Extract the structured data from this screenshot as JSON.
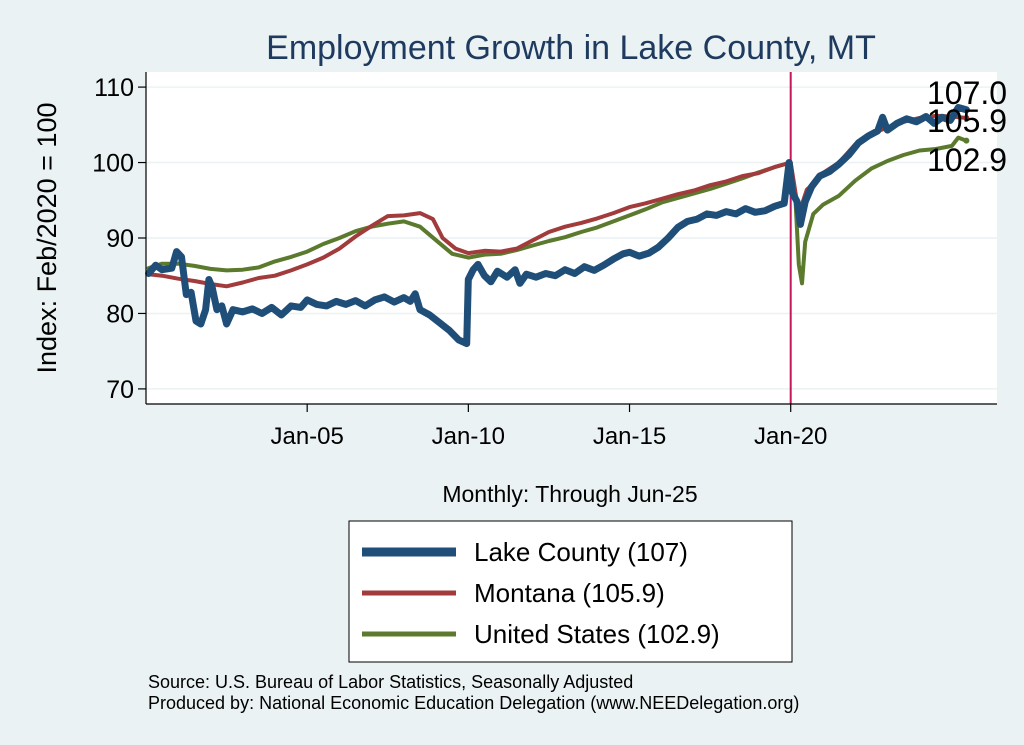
{
  "chart_data": {
    "type": "line",
    "title": "Employment Growth in Lake  County, MT",
    "ylabel": "Index: Feb/2020 = 100",
    "xlabel": "Monthly: Through Jun-25",
    "ylim": [
      68,
      112
    ],
    "yticks": [
      70,
      80,
      90,
      100,
      110
    ],
    "xlim": [
      2000.0,
      2026.4
    ],
    "xticks": [
      {
        "label": "Jan-05",
        "x": 2005.0
      },
      {
        "label": "Jan-10",
        "x": 2010.0
      },
      {
        "label": "Jan-15",
        "x": 2015.0
      },
      {
        "label": "Jan-20",
        "x": 2020.0
      }
    ],
    "vline": {
      "x": 2020.0,
      "color": "#c2185b"
    },
    "grid": true,
    "series": [
      {
        "name": "Lake County",
        "legend": "Lake  County (107)",
        "end_label": "107.0",
        "color": "#1f4e79",
        "width": 7,
        "points": [
          [
            2000.08,
            85.3
          ],
          [
            2000.3,
            86.4
          ],
          [
            2000.5,
            85.8
          ],
          [
            2000.8,
            86.0
          ],
          [
            2000.95,
            88.2
          ],
          [
            2001.1,
            87.5
          ],
          [
            2001.25,
            82.5
          ],
          [
            2001.4,
            82.8
          ],
          [
            2001.55,
            79.0
          ],
          [
            2001.7,
            78.6
          ],
          [
            2001.85,
            80.5
          ],
          [
            2001.95,
            84.5
          ],
          [
            2002.05,
            83.5
          ],
          [
            2002.2,
            80.5
          ],
          [
            2002.35,
            81.0
          ],
          [
            2002.5,
            78.6
          ],
          [
            2002.7,
            80.5
          ],
          [
            2003.0,
            80.2
          ],
          [
            2003.3,
            80.6
          ],
          [
            2003.6,
            80.0
          ],
          [
            2003.9,
            80.8
          ],
          [
            2004.2,
            79.8
          ],
          [
            2004.5,
            81.0
          ],
          [
            2004.8,
            80.8
          ],
          [
            2005.0,
            81.8
          ],
          [
            2005.3,
            81.2
          ],
          [
            2005.6,
            81.0
          ],
          [
            2005.9,
            81.6
          ],
          [
            2006.2,
            81.2
          ],
          [
            2006.5,
            81.7
          ],
          [
            2006.8,
            81.0
          ],
          [
            2007.1,
            81.8
          ],
          [
            2007.4,
            82.2
          ],
          [
            2007.7,
            81.5
          ],
          [
            2008.0,
            82.1
          ],
          [
            2008.2,
            81.6
          ],
          [
            2008.35,
            82.6
          ],
          [
            2008.5,
            80.5
          ],
          [
            2008.8,
            79.8
          ],
          [
            2009.1,
            78.8
          ],
          [
            2009.4,
            77.8
          ],
          [
            2009.7,
            76.5
          ],
          [
            2009.95,
            76.0
          ],
          [
            2010.0,
            84.5
          ],
          [
            2010.15,
            85.8
          ],
          [
            2010.3,
            86.5
          ],
          [
            2010.5,
            85.0
          ],
          [
            2010.7,
            84.2
          ],
          [
            2010.9,
            85.6
          ],
          [
            2011.2,
            84.8
          ],
          [
            2011.45,
            85.8
          ],
          [
            2011.6,
            84.0
          ],
          [
            2011.8,
            85.2
          ],
          [
            2012.1,
            84.8
          ],
          [
            2012.4,
            85.3
          ],
          [
            2012.7,
            85.0
          ],
          [
            2013.0,
            85.8
          ],
          [
            2013.3,
            85.3
          ],
          [
            2013.6,
            86.2
          ],
          [
            2013.9,
            85.7
          ],
          [
            2014.2,
            86.4
          ],
          [
            2014.5,
            87.2
          ],
          [
            2014.8,
            87.9
          ],
          [
            2015.0,
            88.1
          ],
          [
            2015.3,
            87.6
          ],
          [
            2015.6,
            88.0
          ],
          [
            2015.9,
            88.8
          ],
          [
            2016.2,
            90.0
          ],
          [
            2016.5,
            91.4
          ],
          [
            2016.8,
            92.2
          ],
          [
            2017.1,
            92.5
          ],
          [
            2017.4,
            93.2
          ],
          [
            2017.7,
            93.0
          ],
          [
            2018.0,
            93.5
          ],
          [
            2018.3,
            93.2
          ],
          [
            2018.6,
            93.9
          ],
          [
            2018.9,
            93.4
          ],
          [
            2019.2,
            93.6
          ],
          [
            2019.5,
            94.2
          ],
          [
            2019.8,
            94.6
          ],
          [
            2019.95,
            100.0
          ],
          [
            2020.05,
            96.0
          ],
          [
            2020.2,
            94.8
          ],
          [
            2020.3,
            91.8
          ],
          [
            2020.45,
            94.8
          ],
          [
            2020.65,
            96.8
          ],
          [
            2020.9,
            98.2
          ],
          [
            2021.2,
            98.8
          ],
          [
            2021.5,
            99.8
          ],
          [
            2021.8,
            101.0
          ],
          [
            2022.1,
            102.6
          ],
          [
            2022.4,
            103.5
          ],
          [
            2022.7,
            104.2
          ],
          [
            2022.85,
            106.0
          ],
          [
            2023.0,
            104.3
          ],
          [
            2023.3,
            105.2
          ],
          [
            2023.6,
            105.8
          ],
          [
            2023.9,
            105.4
          ],
          [
            2024.2,
            106.1
          ],
          [
            2024.45,
            105.2
          ],
          [
            2024.7,
            106.0
          ],
          [
            2024.95,
            105.6
          ],
          [
            2025.2,
            107.3
          ],
          [
            2025.45,
            107.0
          ]
        ]
      },
      {
        "name": "Montana",
        "legend": "Montana (105.9)",
        "end_label": "105.9",
        "color": "#a23b3b",
        "width": 4,
        "points": [
          [
            2000.08,
            85.2
          ],
          [
            2000.5,
            85.0
          ],
          [
            2001.0,
            84.6
          ],
          [
            2001.5,
            84.3
          ],
          [
            2002.0,
            83.9
          ],
          [
            2002.5,
            83.6
          ],
          [
            2003.0,
            84.1
          ],
          [
            2003.5,
            84.7
          ],
          [
            2004.0,
            85.0
          ],
          [
            2004.5,
            85.7
          ],
          [
            2005.0,
            86.5
          ],
          [
            2005.5,
            87.4
          ],
          [
            2006.0,
            88.6
          ],
          [
            2006.5,
            90.2
          ],
          [
            2007.0,
            91.6
          ],
          [
            2007.5,
            92.9
          ],
          [
            2008.0,
            93.0
          ],
          [
            2008.5,
            93.3
          ],
          [
            2008.9,
            92.5
          ],
          [
            2009.2,
            90.0
          ],
          [
            2009.6,
            88.6
          ],
          [
            2010.0,
            88.0
          ],
          [
            2010.5,
            88.3
          ],
          [
            2011.0,
            88.2
          ],
          [
            2011.5,
            88.6
          ],
          [
            2012.0,
            89.7
          ],
          [
            2012.5,
            90.8
          ],
          [
            2013.0,
            91.5
          ],
          [
            2013.5,
            92.0
          ],
          [
            2014.0,
            92.6
          ],
          [
            2014.5,
            93.3
          ],
          [
            2015.0,
            94.1
          ],
          [
            2015.5,
            94.6
          ],
          [
            2016.0,
            95.2
          ],
          [
            2016.5,
            95.8
          ],
          [
            2017.0,
            96.3
          ],
          [
            2017.5,
            97.0
          ],
          [
            2018.0,
            97.5
          ],
          [
            2018.5,
            98.2
          ],
          [
            2019.0,
            98.6
          ],
          [
            2019.5,
            99.4
          ],
          [
            2020.0,
            100.0
          ],
          [
            2020.15,
            96.0
          ],
          [
            2020.25,
            93.2
          ],
          [
            2020.5,
            96.4
          ],
          [
            2020.8,
            97.6
          ],
          [
            2021.0,
            98.6
          ],
          [
            2021.5,
            100.0
          ],
          [
            2022.0,
            102.4
          ],
          [
            2022.5,
            103.9
          ],
          [
            2023.0,
            104.6
          ],
          [
            2023.5,
            105.4
          ],
          [
            2024.0,
            105.9
          ],
          [
            2024.5,
            106.2
          ],
          [
            2025.0,
            106.1
          ],
          [
            2025.45,
            105.9
          ]
        ]
      },
      {
        "name": "United States",
        "legend": "United States (102.9)",
        "end_label": "102.9",
        "color": "#5b7a2e",
        "width": 4,
        "points": [
          [
            2000.08,
            86.0
          ],
          [
            2000.5,
            86.6
          ],
          [
            2001.0,
            86.6
          ],
          [
            2001.5,
            86.3
          ],
          [
            2002.0,
            85.9
          ],
          [
            2002.5,
            85.7
          ],
          [
            2003.0,
            85.8
          ],
          [
            2003.5,
            86.1
          ],
          [
            2004.0,
            86.9
          ],
          [
            2004.5,
            87.5
          ],
          [
            2005.0,
            88.2
          ],
          [
            2005.5,
            89.2
          ],
          [
            2006.0,
            90.0
          ],
          [
            2006.5,
            90.9
          ],
          [
            2007.0,
            91.5
          ],
          [
            2007.5,
            91.9
          ],
          [
            2008.0,
            92.2
          ],
          [
            2008.5,
            91.5
          ],
          [
            2009.0,
            89.7
          ],
          [
            2009.5,
            87.9
          ],
          [
            2010.0,
            87.4
          ],
          [
            2010.5,
            87.8
          ],
          [
            2011.0,
            87.9
          ],
          [
            2011.5,
            88.4
          ],
          [
            2012.0,
            89.0
          ],
          [
            2012.5,
            89.6
          ],
          [
            2013.0,
            90.1
          ],
          [
            2013.5,
            90.8
          ],
          [
            2014.0,
            91.4
          ],
          [
            2014.5,
            92.2
          ],
          [
            2015.0,
            93.0
          ],
          [
            2015.5,
            93.8
          ],
          [
            2016.0,
            94.7
          ],
          [
            2016.5,
            95.3
          ],
          [
            2017.0,
            95.9
          ],
          [
            2017.5,
            96.5
          ],
          [
            2018.0,
            97.2
          ],
          [
            2018.5,
            97.9
          ],
          [
            2019.0,
            98.7
          ],
          [
            2019.5,
            99.4
          ],
          [
            2020.0,
            100.0
          ],
          [
            2020.15,
            95.0
          ],
          [
            2020.25,
            86.5
          ],
          [
            2020.35,
            84.0
          ],
          [
            2020.45,
            89.5
          ],
          [
            2020.7,
            93.2
          ],
          [
            2021.0,
            94.4
          ],
          [
            2021.5,
            95.6
          ],
          [
            2022.0,
            97.6
          ],
          [
            2022.5,
            99.2
          ],
          [
            2023.0,
            100.2
          ],
          [
            2023.5,
            101.0
          ],
          [
            2024.0,
            101.6
          ],
          [
            2024.5,
            101.8
          ],
          [
            2025.0,
            102.2
          ],
          [
            2025.2,
            103.3
          ],
          [
            2025.45,
            102.9
          ]
        ]
      }
    ]
  },
  "source_line1": "Source: U.S. Bureau of Labor Statistics, Seasonally Adjusted",
  "source_line2": "Produced by: National Economic Education Delegation (www.NEEDelegation.org)"
}
